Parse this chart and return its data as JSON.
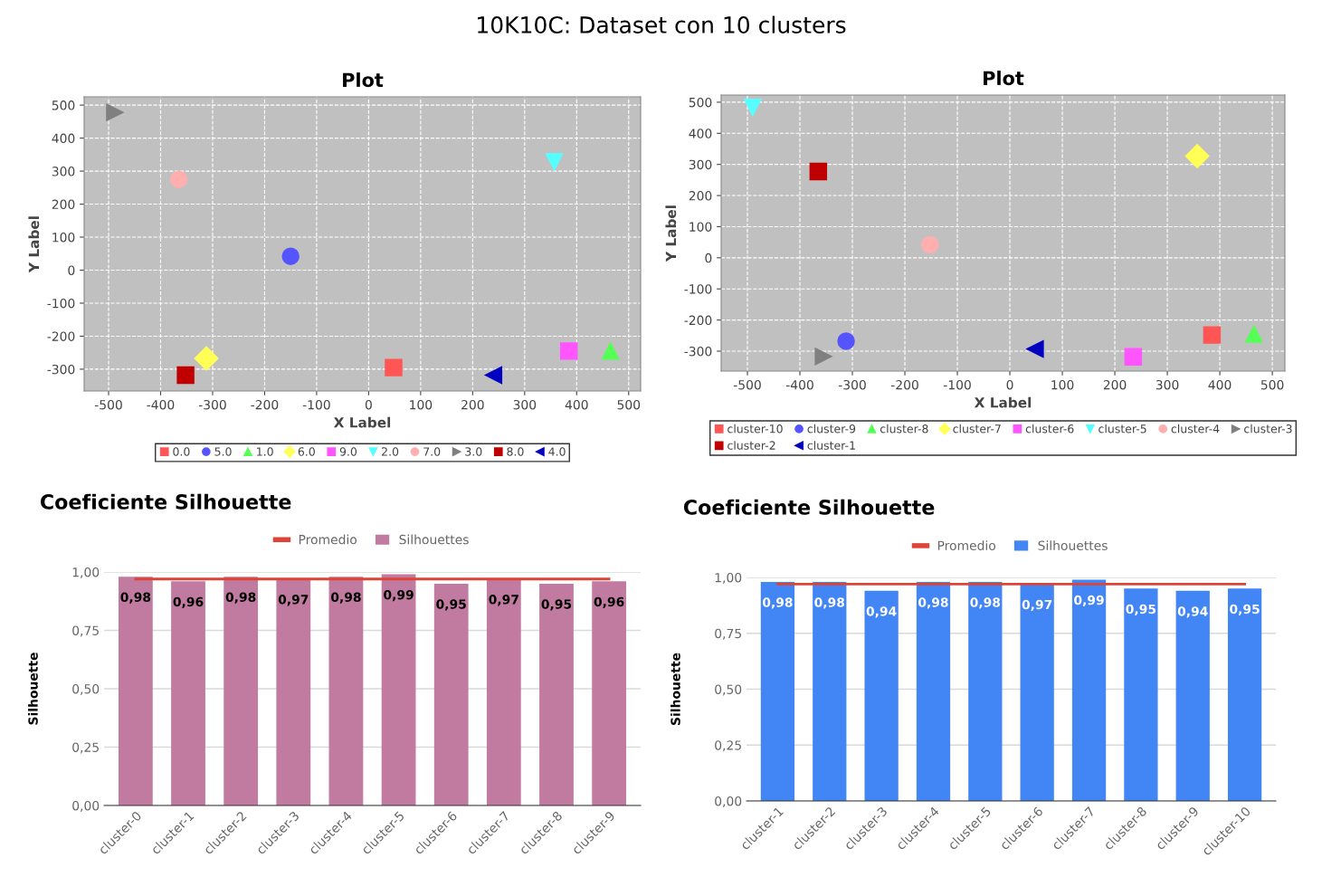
{
  "chart_data": [
    {
      "type": "scatter",
      "title": "Plot",
      "xlabel": "X Label",
      "ylabel": "Y Label",
      "annotations": [
        "10K10C: Dataset con 10 clusters"
      ],
      "xlim": [
        -547,
        523
      ],
      "ylim": [
        -366,
        525
      ],
      "xticks": [
        -500,
        -400,
        -300,
        -200,
        -100,
        0,
        100,
        200,
        300,
        400,
        500
      ],
      "yticks": [
        -300,
        -200,
        -100,
        0,
        100,
        200,
        300,
        400,
        500
      ],
      "grid": true,
      "legend": "bottom",
      "series": [
        {
          "name": "0.0",
          "color": "#ff5555",
          "marker": "square",
          "x": [
            48
          ],
          "values": [
            -295
          ]
        },
        {
          "name": "5.0",
          "color": "#5555ff",
          "marker": "circle",
          "x": [
            -150
          ],
          "values": [
            42
          ]
        },
        {
          "name": "1.0",
          "color": "#55ff55",
          "marker": "triangle",
          "x": [
            465
          ],
          "values": [
            -245
          ]
        },
        {
          "name": "6.0",
          "color": "#ffff55",
          "marker": "diamond",
          "x": [
            -312
          ],
          "values": [
            -267
          ]
        },
        {
          "name": "9.0",
          "color": "#ff55ff",
          "marker": "square",
          "x": [
            385
          ],
          "values": [
            -245
          ]
        },
        {
          "name": "2.0",
          "color": "#55ffff",
          "marker": "triangle_down",
          "x": [
            357
          ],
          "values": [
            328
          ]
        },
        {
          "name": "7.0",
          "color": "#ffafaf",
          "marker": "circle",
          "x": [
            -365
          ],
          "values": [
            275
          ]
        },
        {
          "name": "3.0",
          "color": "#808080",
          "marker": "triangle_right",
          "x": [
            -488
          ],
          "values": [
            478
          ]
        },
        {
          "name": "8.0",
          "color": "#c00000",
          "marker": "square",
          "x": [
            -352
          ],
          "values": [
            -318
          ]
        },
        {
          "name": "4.0",
          "color": "#0000c0",
          "marker": "triangle_left",
          "x": [
            240
          ],
          "values": [
            -318
          ]
        }
      ]
    },
    {
      "type": "scatter",
      "title": "Plot",
      "xlabel": "X Label",
      "ylabel": "Y Label",
      "xlim": [
        -550,
        524
      ],
      "ylim": [
        -364,
        523
      ],
      "xticks": [
        -500,
        -400,
        -300,
        -200,
        -100,
        0,
        100,
        200,
        300,
        400,
        500
      ],
      "yticks": [
        -300,
        -200,
        -100,
        0,
        100,
        200,
        300,
        400,
        500
      ],
      "grid": true,
      "legend": "bottom",
      "series": [
        {
          "name": "cluster-10",
          "color": "#ff5555",
          "marker": "square",
          "x": [
            385
          ],
          "values": [
            -248
          ]
        },
        {
          "name": "cluster-9",
          "color": "#5555ff",
          "marker": "circle",
          "x": [
            -312
          ],
          "values": [
            -268
          ]
        },
        {
          "name": "cluster-8",
          "color": "#55ff55",
          "marker": "triangle",
          "x": [
            465
          ],
          "values": [
            -245
          ]
        },
        {
          "name": "cluster-7",
          "color": "#ffff55",
          "marker": "diamond",
          "x": [
            357
          ],
          "values": [
            327
          ]
        },
        {
          "name": "cluster-6",
          "color": "#ff55ff",
          "marker": "square",
          "x": [
            235
          ],
          "values": [
            -318
          ]
        },
        {
          "name": "cluster-5",
          "color": "#55ffff",
          "marker": "triangle_down",
          "x": [
            -490
          ],
          "values": [
            483
          ]
        },
        {
          "name": "cluster-4",
          "color": "#ffafaf",
          "marker": "circle",
          "x": [
            -152
          ],
          "values": [
            42
          ]
        },
        {
          "name": "cluster-3",
          "color": "#808080",
          "marker": "triangle_right",
          "x": [
            -355
          ],
          "values": [
            -317
          ]
        },
        {
          "name": "cluster-2",
          "color": "#c00000",
          "marker": "square",
          "x": [
            -365
          ],
          "values": [
            277
          ]
        },
        {
          "name": "cluster-1",
          "color": "#0000c0",
          "marker": "triangle_left",
          "x": [
            48
          ],
          "values": [
            -293
          ]
        }
      ]
    },
    {
      "type": "bar",
      "title": "Coeficiente Silhouette",
      "ylabel": "Silhouette",
      "categories": [
        "cluster-0",
        "cluster-1",
        "cluster-2",
        "cluster-3",
        "cluster-4",
        "cluster-5",
        "cluster-6",
        "cluster-7",
        "cluster-8",
        "cluster-9"
      ],
      "ylim": [
        0,
        1
      ],
      "yticks": [
        {
          "value": 0,
          "label": "0,00"
        },
        {
          "value": 0.25,
          "label": "0,25"
        },
        {
          "value": 0.5,
          "label": "0,50"
        },
        {
          "value": 0.75,
          "label": "0,75"
        },
        {
          "value": 1,
          "label": "1,00"
        }
      ],
      "grid": "y",
      "legend": "top",
      "series": [
        {
          "name": "Promedio",
          "type": "line",
          "color": "#db4437",
          "values": [
            0.97,
            0.97,
            0.97,
            0.97,
            0.97,
            0.97,
            0.97,
            0.97,
            0.97,
            0.97
          ]
        },
        {
          "name": "Silhouettes",
          "type": "bar",
          "color": "#c27ba0",
          "values": [
            0.98,
            0.96,
            0.98,
            0.97,
            0.98,
            0.99,
            0.95,
            0.97,
            0.95,
            0.96
          ],
          "value_labels": [
            "0,98",
            "0,96",
            "0,98",
            "0,97",
            "0,98",
            "0,99",
            "0,95",
            "0,97",
            "0,95",
            "0,96"
          ]
        }
      ]
    },
    {
      "type": "bar",
      "title": "Coeficiente Silhouette",
      "ylabel": "Silhouette",
      "categories": [
        "cluster-1",
        "cluster-2",
        "cluster-3",
        "cluster-4",
        "cluster-5",
        "cluster-6",
        "cluster-7",
        "cluster-8",
        "cluster-9",
        "cluster-10"
      ],
      "ylim": [
        0,
        1
      ],
      "yticks": [
        {
          "value": 0,
          "label": "0,00"
        },
        {
          "value": 0.25,
          "label": "0,25"
        },
        {
          "value": 0.5,
          "label": "0,50"
        },
        {
          "value": 0.75,
          "label": "0,75"
        },
        {
          "value": 1,
          "label": "1,00"
        }
      ],
      "grid": "y",
      "legend": "top",
      "series": [
        {
          "name": "Promedio",
          "type": "line",
          "color": "#db4437",
          "values": [
            0.97,
            0.97,
            0.97,
            0.97,
            0.97,
            0.97,
            0.97,
            0.97,
            0.97,
            0.97
          ]
        },
        {
          "name": "Silhouettes",
          "type": "bar",
          "color": "#4285f4",
          "values": [
            0.98,
            0.98,
            0.94,
            0.98,
            0.98,
            0.97,
            0.99,
            0.95,
            0.94,
            0.95
          ],
          "value_labels": [
            "0,98",
            "0,98",
            "0,94",
            "0,98",
            "0,98",
            "0,97",
            "0,99",
            "0,95",
            "0,94",
            "0,95"
          ]
        }
      ]
    }
  ]
}
